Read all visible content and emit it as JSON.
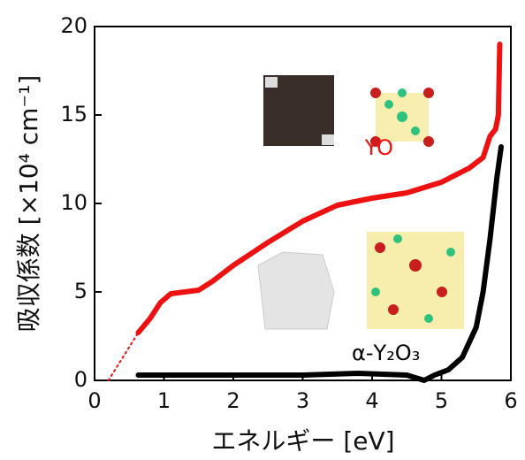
{
  "chart_data": {
    "type": "line",
    "xlabel": "エネルギー [eV]",
    "ylabel": "吸収係数 [×10⁴ cm⁻¹]",
    "xlim": [
      0,
      6
    ],
    "xticks": [
      0,
      1,
      2,
      3,
      4,
      5,
      6
    ],
    "ylim": [
      0,
      20
    ],
    "yticks": [
      0,
      5,
      10,
      15,
      20
    ],
    "series": [
      {
        "name": "YO",
        "color": "#ee1111",
        "x": [
          0.63,
          0.8,
          0.95,
          1.1,
          1.3,
          1.5,
          1.7,
          2.0,
          2.5,
          3.0,
          3.5,
          4.0,
          4.5,
          5.0,
          5.4,
          5.6,
          5.7,
          5.78,
          5.82,
          5.84
        ],
        "values": [
          2.7,
          3.5,
          4.4,
          4.9,
          5.0,
          5.1,
          5.6,
          6.5,
          7.8,
          9.0,
          9.9,
          10.3,
          10.6,
          11.2,
          12.0,
          12.6,
          13.8,
          14.2,
          15.0,
          19.0
        ]
      },
      {
        "name": "α-Y₂O₃",
        "color": "#000000",
        "x": [
          0.63,
          1.0,
          2.0,
          3.0,
          3.8,
          4.5,
          4.75,
          4.9,
          5.1,
          5.3,
          5.5,
          5.6,
          5.7,
          5.8,
          5.86
        ],
        "values": [
          0.3,
          0.3,
          0.3,
          0.3,
          0.4,
          0.3,
          0.0,
          0.3,
          0.6,
          1.3,
          3.0,
          5.0,
          8.0,
          11.5,
          13.2
        ]
      }
    ],
    "extrapolation": {
      "color": "#ee1111",
      "x": [
        0.2,
        0.63
      ],
      "values": [
        0,
        2.7
      ]
    }
  }
}
